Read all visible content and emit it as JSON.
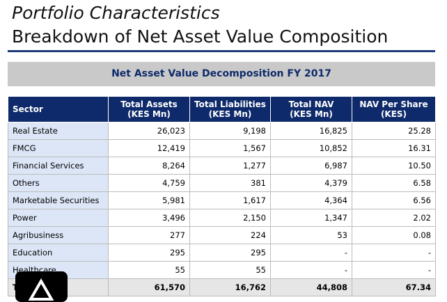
{
  "header": {
    "title": "Portfolio Characteristics",
    "subtitle": "Breakdown of Net Asset Value Composition"
  },
  "table": {
    "caption": "Net Asset Value Decomposition FY 2017",
    "columns": [
      "Sector",
      "Total Assets\n(KES Mn)",
      "Total Liabilities\n(KES Mn)",
      "Total NAV\n(KES Mn)",
      "NAV Per Share\n(KES)"
    ],
    "rows": [
      [
        "Real Estate",
        "26,023",
        "9,198",
        "16,825",
        "25.28"
      ],
      [
        "FMCG",
        "12,419",
        "1,567",
        "10,852",
        "16.31"
      ],
      [
        "Financial Services",
        "8,264",
        "1,277",
        "6,987",
        "10.50"
      ],
      [
        "Others",
        "4,759",
        "381",
        "4,379",
        "6.58"
      ],
      [
        "Marketable Securities",
        "5,981",
        "1,617",
        "4,364",
        "6.56"
      ],
      [
        "Power",
        "3,496",
        "2,150",
        "1,347",
        "2.02"
      ],
      [
        "Agribusiness",
        "277",
        "224",
        "53",
        "0.08"
      ],
      [
        "Education",
        "295",
        "295",
        "-",
        "-"
      ],
      [
        "Healthcare",
        "55",
        "55",
        "-",
        "-"
      ]
    ],
    "total": [
      "Total",
      "61,570",
      "16,762",
      "44,808",
      "67.34"
    ]
  }
}
